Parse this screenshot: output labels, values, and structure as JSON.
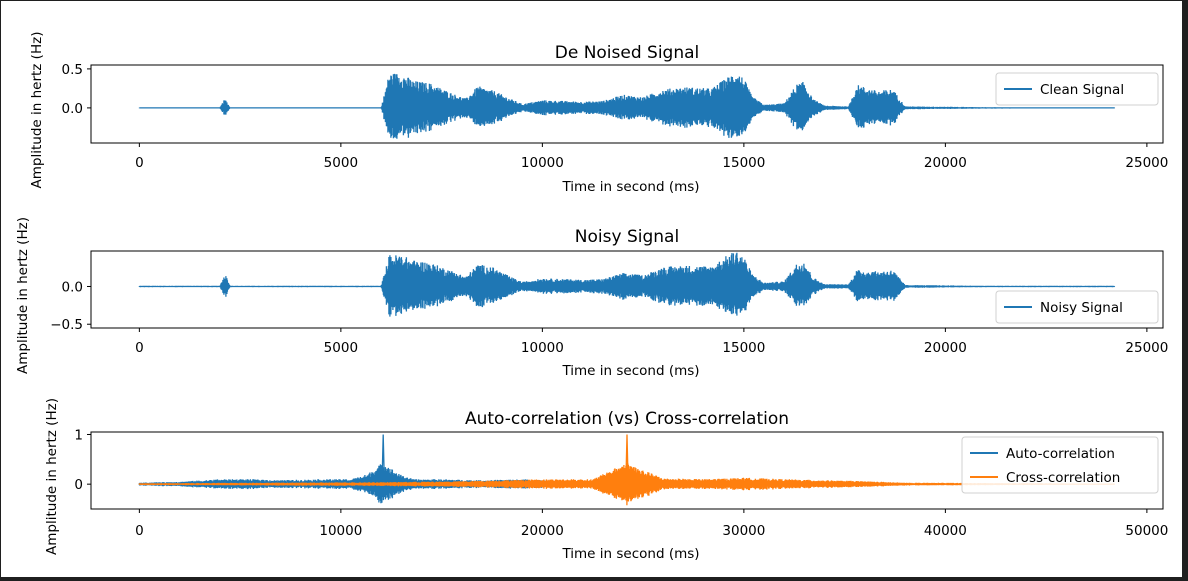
{
  "chart_data": [
    {
      "type": "line",
      "title": "De Noised Signal",
      "xlabel": "Time in second (ms)",
      "ylabel": "Amplitude in hertz (Hz)",
      "xlim": [
        -1200,
        25400
      ],
      "ylim": [
        -0.45,
        0.55
      ],
      "xticks": [
        0,
        5000,
        10000,
        15000,
        20000,
        25000
      ],
      "xtick_labels": [
        "0",
        "5000",
        "10000",
        "15000",
        "20000",
        "25000"
      ],
      "yticks": [
        0.5,
        0.0
      ],
      "ytick_labels": [
        "0.5",
        "0.0"
      ],
      "legend_position": "top-right",
      "series": [
        {
          "name": "Clean Signal",
          "color": "#1f77b4",
          "envelope": [
            [
              0,
              0.005
            ],
            [
              2000,
              0.005
            ],
            [
              2100,
              0.1
            ],
            [
              2150,
              0.1
            ],
            [
              2250,
              0.005
            ],
            [
              6000,
              0.005
            ],
            [
              6200,
              0.45
            ],
            [
              6500,
              0.45
            ],
            [
              6800,
              0.35
            ],
            [
              7200,
              0.32
            ],
            [
              7800,
              0.18
            ],
            [
              8100,
              0.12
            ],
            [
              8400,
              0.28
            ],
            [
              8800,
              0.22
            ],
            [
              9200,
              0.12
            ],
            [
              9500,
              0.05
            ],
            [
              10000,
              0.1
            ],
            [
              11000,
              0.08
            ],
            [
              11500,
              0.09
            ],
            [
              12000,
              0.17
            ],
            [
              12500,
              0.14
            ],
            [
              13000,
              0.24
            ],
            [
              13500,
              0.27
            ],
            [
              14200,
              0.25
            ],
            [
              14600,
              0.4
            ],
            [
              14800,
              0.48
            ],
            [
              15000,
              0.38
            ],
            [
              15200,
              0.15
            ],
            [
              15500,
              0.04
            ],
            [
              16000,
              0.06
            ],
            [
              16300,
              0.3
            ],
            [
              16500,
              0.34
            ],
            [
              16700,
              0.12
            ],
            [
              17000,
              0.03
            ],
            [
              17600,
              0.02
            ],
            [
              17800,
              0.3
            ],
            [
              18300,
              0.22
            ],
            [
              18700,
              0.24
            ],
            [
              19000,
              0.02
            ],
            [
              21000,
              0.01
            ],
            [
              24200,
              0.005
            ]
          ]
        }
      ]
    },
    {
      "type": "line",
      "title": "Noisy Signal",
      "xlabel": "Time in second (ms)",
      "ylabel": "Amplitude in hertz (Hz)",
      "xlim": [
        -1200,
        25400
      ],
      "ylim": [
        -0.55,
        0.47
      ],
      "xticks": [
        0,
        5000,
        10000,
        15000,
        20000,
        25000
      ],
      "xtick_labels": [
        "0",
        "5000",
        "10000",
        "15000",
        "20000",
        "25000"
      ],
      "yticks": [
        0.0,
        -0.5
      ],
      "ytick_labels": [
        "0.0",
        "−0.5"
      ],
      "legend_position": "lower right",
      "series": [
        {
          "name": "Noisy Signal",
          "color": "#1f77b4",
          "envelope": [
            [
              0,
              0.01
            ],
            [
              2000,
              0.01
            ],
            [
              2100,
              0.14
            ],
            [
              2150,
              0.14
            ],
            [
              2250,
              0.01
            ],
            [
              6000,
              0.01
            ],
            [
              6200,
              0.42
            ],
            [
              6500,
              0.42
            ],
            [
              6800,
              0.35
            ],
            [
              7200,
              0.32
            ],
            [
              7800,
              0.2
            ],
            [
              8100,
              0.13
            ],
            [
              8400,
              0.3
            ],
            [
              8800,
              0.25
            ],
            [
              9200,
              0.13
            ],
            [
              9500,
              0.06
            ],
            [
              10000,
              0.11
            ],
            [
              11000,
              0.09
            ],
            [
              11500,
              0.1
            ],
            [
              12000,
              0.18
            ],
            [
              12500,
              0.15
            ],
            [
              13000,
              0.26
            ],
            [
              13500,
              0.28
            ],
            [
              14200,
              0.27
            ],
            [
              14600,
              0.42
            ],
            [
              14800,
              0.48
            ],
            [
              15000,
              0.4
            ],
            [
              15200,
              0.17
            ],
            [
              15500,
              0.05
            ],
            [
              16000,
              0.07
            ],
            [
              16300,
              0.3
            ],
            [
              16500,
              0.35
            ],
            [
              16700,
              0.13
            ],
            [
              17000,
              0.03
            ],
            [
              17600,
              0.03
            ],
            [
              17800,
              0.22
            ],
            [
              18300,
              0.2
            ],
            [
              18700,
              0.22
            ],
            [
              19000,
              0.02
            ],
            [
              21000,
              0.01
            ],
            [
              24200,
              0.01
            ]
          ]
        }
      ]
    },
    {
      "type": "line",
      "title": "Auto-correlation (vs) Cross-correlation",
      "xlabel": "Time in second (ms)",
      "ylabel": "Amplitude in hertz (Hz)",
      "xlim": [
        -2400,
        50800
      ],
      "ylim": [
        -0.5,
        1.05
      ],
      "xticks": [
        0,
        10000,
        20000,
        30000,
        40000,
        50000
      ],
      "xtick_labels": [
        "0",
        "10000",
        "20000",
        "30000",
        "40000",
        "50000"
      ],
      "yticks": [
        1,
        0
      ],
      "ytick_labels": [
        "1",
        "0"
      ],
      "legend_position": "right",
      "series": [
        {
          "name": "Auto-correlation",
          "color": "#1f77b4",
          "peak": {
            "x": 12100,
            "y": 1.0
          },
          "envelope": [
            [
              0,
              0.03
            ],
            [
              2000,
              0.05
            ],
            [
              4000,
              0.1
            ],
            [
              5500,
              0.1
            ],
            [
              7000,
              0.08
            ],
            [
              9000,
              0.1
            ],
            [
              10500,
              0.1
            ],
            [
              11300,
              0.2
            ],
            [
              11800,
              0.35
            ],
            [
              12100,
              0.45
            ],
            [
              12400,
              0.35
            ],
            [
              12900,
              0.2
            ],
            [
              13600,
              0.1
            ],
            [
              15000,
              0.1
            ],
            [
              17000,
              0.08
            ],
            [
              19000,
              0.1
            ],
            [
              21000,
              0.06
            ],
            [
              24000,
              0.02
            ]
          ]
        },
        {
          "name": "Cross-correlation",
          "color": "#ff7f0e",
          "peak": {
            "x": 24200,
            "y": 1.0
          },
          "envelope": [
            [
              0,
              0.02
            ],
            [
              6000,
              0.03
            ],
            [
              12000,
              0.04
            ],
            [
              16000,
              0.06
            ],
            [
              20000,
              0.1
            ],
            [
              22500,
              0.1
            ],
            [
              23500,
              0.3
            ],
            [
              24200,
              0.45
            ],
            [
              24900,
              0.3
            ],
            [
              26000,
              0.12
            ],
            [
              28000,
              0.1
            ],
            [
              30000,
              0.13
            ],
            [
              32000,
              0.1
            ],
            [
              34000,
              0.08
            ],
            [
              36000,
              0.06
            ],
            [
              38000,
              0.03
            ],
            [
              44000,
              0.02
            ],
            [
              48400,
              0.01
            ]
          ]
        }
      ]
    }
  ]
}
